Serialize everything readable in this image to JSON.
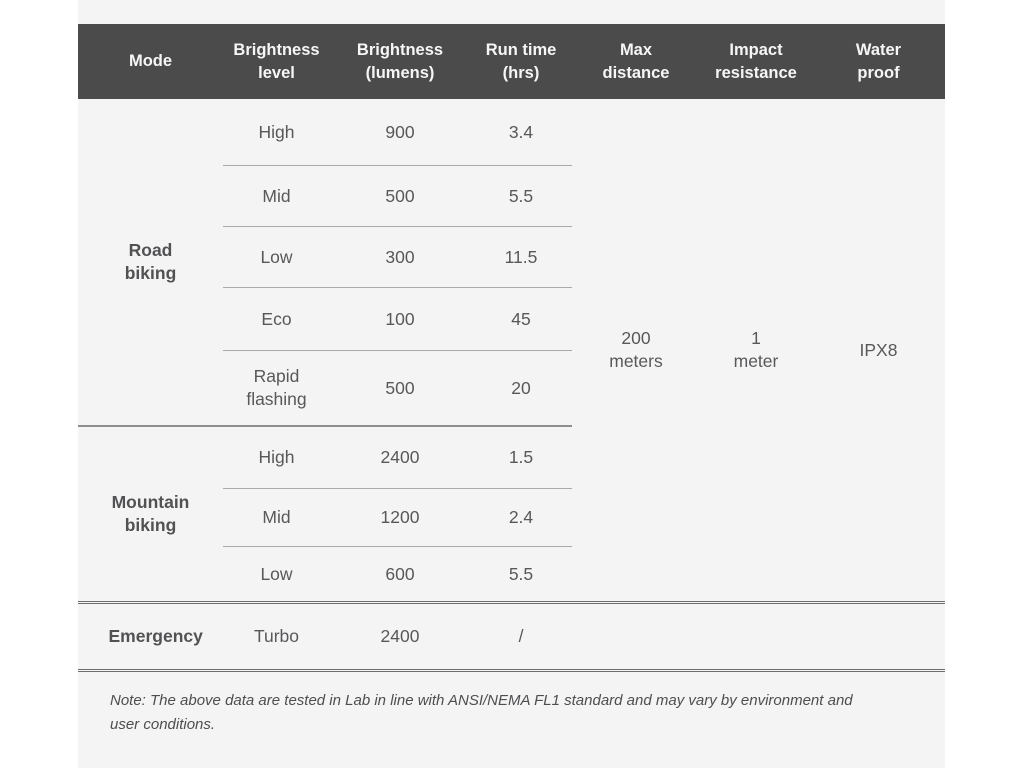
{
  "chart_data": {
    "type": "table",
    "columns": [
      "Mode",
      "Brightness level",
      "Brightness (lumens)",
      "Run time (hrs)",
      "Max distance",
      "Impact resistance",
      "Water proof"
    ],
    "rows": [
      [
        "Road biking",
        "High",
        "900",
        "3.4",
        "200 meters",
        "1 meter",
        "IPX8"
      ],
      [
        "Road biking",
        "Mid",
        "500",
        "5.5",
        "200 meters",
        "1 meter",
        "IPX8"
      ],
      [
        "Road biking",
        "Low",
        "300",
        "11.5",
        "200 meters",
        "1 meter",
        "IPX8"
      ],
      [
        "Road biking",
        "Eco",
        "100",
        "45",
        "200 meters",
        "1 meter",
        "IPX8"
      ],
      [
        "Road biking",
        "Rapid flashing",
        "500",
        "20",
        "200 meters",
        "1 meter",
        "IPX8"
      ],
      [
        "Mountain biking",
        "High",
        "2400",
        "1.5",
        "200 meters",
        "1 meter",
        "IPX8"
      ],
      [
        "Mountain biking",
        "Mid",
        "1200",
        "2.4",
        "200 meters",
        "1 meter",
        "IPX8"
      ],
      [
        "Mountain biking",
        "Low",
        "600",
        "5.5",
        "200 meters",
        "1 meter",
        "IPX8"
      ],
      [
        "Emergency",
        "Turbo",
        "2400",
        "/",
        "",
        "",
        ""
      ]
    ],
    "note": "Note: The above data are tested in Lab in line with ANSI/NEMA FL1 standard and may vary by environment and user conditions."
  },
  "table": {
    "headers": [
      "Mode",
      "Brightness level",
      "Brightness (lumens)",
      "Run time (hrs)",
      "Max distance",
      "Impact resistance",
      "Water proof"
    ],
    "sections": [
      {
        "mode": "Road biking",
        "rows": [
          {
            "level": "High",
            "lumens": "900",
            "runtime": "3.4"
          },
          {
            "level": "Mid",
            "lumens": "500",
            "runtime": "5.5"
          },
          {
            "level": "Low",
            "lumens": "300",
            "runtime": "11.5"
          },
          {
            "level": "Eco",
            "lumens": "100",
            "runtime": "45"
          },
          {
            "level": "Rapid flashing",
            "lumens": "500",
            "runtime": "20"
          }
        ]
      },
      {
        "mode": "Mountain biking",
        "rows": [
          {
            "level": "High",
            "lumens": "2400",
            "runtime": "1.5"
          },
          {
            "level": "Mid",
            "lumens": "1200",
            "runtime": "2.4"
          },
          {
            "level": "Low",
            "lumens": "600",
            "runtime": "5.5"
          }
        ]
      },
      {
        "mode": "Emergency",
        "rows": [
          {
            "level": "Turbo",
            "lumens": "2400",
            "runtime": "/"
          }
        ]
      }
    ],
    "shared": {
      "max_distance": "200 meters",
      "impact_resistance": "1 meter",
      "water_proof": "IPX8"
    },
    "note": "Note: The above data are tested in Lab in line with ANSI/NEMA FL1 standard and may vary by environment and user conditions."
  },
  "colors": {
    "header_bg": "#4b4b4c",
    "body_bg": "#f4f4f5",
    "body_text": "#58585a",
    "line_thin": "#aaaaac",
    "line_section": "#8e8e90",
    "line_heavy": "#6e6e70"
  }
}
